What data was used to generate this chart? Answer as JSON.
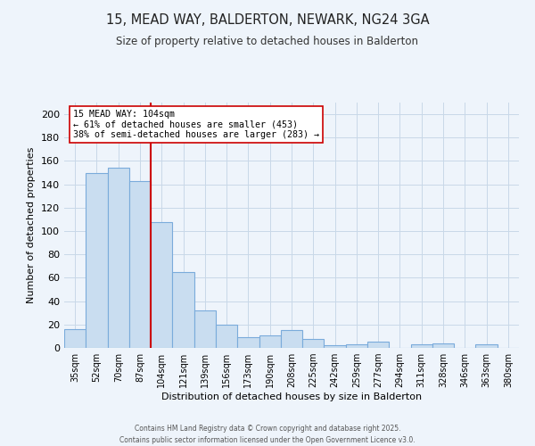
{
  "title": "15, MEAD WAY, BALDERTON, NEWARK, NG24 3GA",
  "subtitle": "Size of property relative to detached houses in Balderton",
  "xlabel": "Distribution of detached houses by size in Balderton",
  "ylabel": "Number of detached properties",
  "categories": [
    "35sqm",
    "52sqm",
    "70sqm",
    "87sqm",
    "104sqm",
    "121sqm",
    "139sqm",
    "156sqm",
    "173sqm",
    "190sqm",
    "208sqm",
    "225sqm",
    "242sqm",
    "259sqm",
    "277sqm",
    "294sqm",
    "311sqm",
    "328sqm",
    "346sqm",
    "363sqm",
    "380sqm"
  ],
  "values": [
    16,
    150,
    154,
    143,
    108,
    65,
    32,
    20,
    9,
    11,
    15,
    8,
    2,
    3,
    5,
    0,
    3,
    4,
    0,
    3,
    0
  ],
  "bar_color": "#c9ddf0",
  "bar_edge_color": "#7aabdb",
  "vline_x_index": 4,
  "vline_color": "#cc0000",
  "annotation_title": "15 MEAD WAY: 104sqm",
  "annotation_line1": "← 61% of detached houses are smaller (453)",
  "annotation_line2": "38% of semi-detached houses are larger (283) →",
  "annotation_box_color": "#ffffff",
  "annotation_box_edge": "#cc0000",
  "ylim": [
    0,
    210
  ],
  "yticks": [
    0,
    20,
    40,
    60,
    80,
    100,
    120,
    140,
    160,
    180,
    200
  ],
  "grid_color": "#c8d8e8",
  "bg_color": "#eef4fb",
  "footer1": "Contains HM Land Registry data © Crown copyright and database right 2025.",
  "footer2": "Contains public sector information licensed under the Open Government Licence v3.0."
}
